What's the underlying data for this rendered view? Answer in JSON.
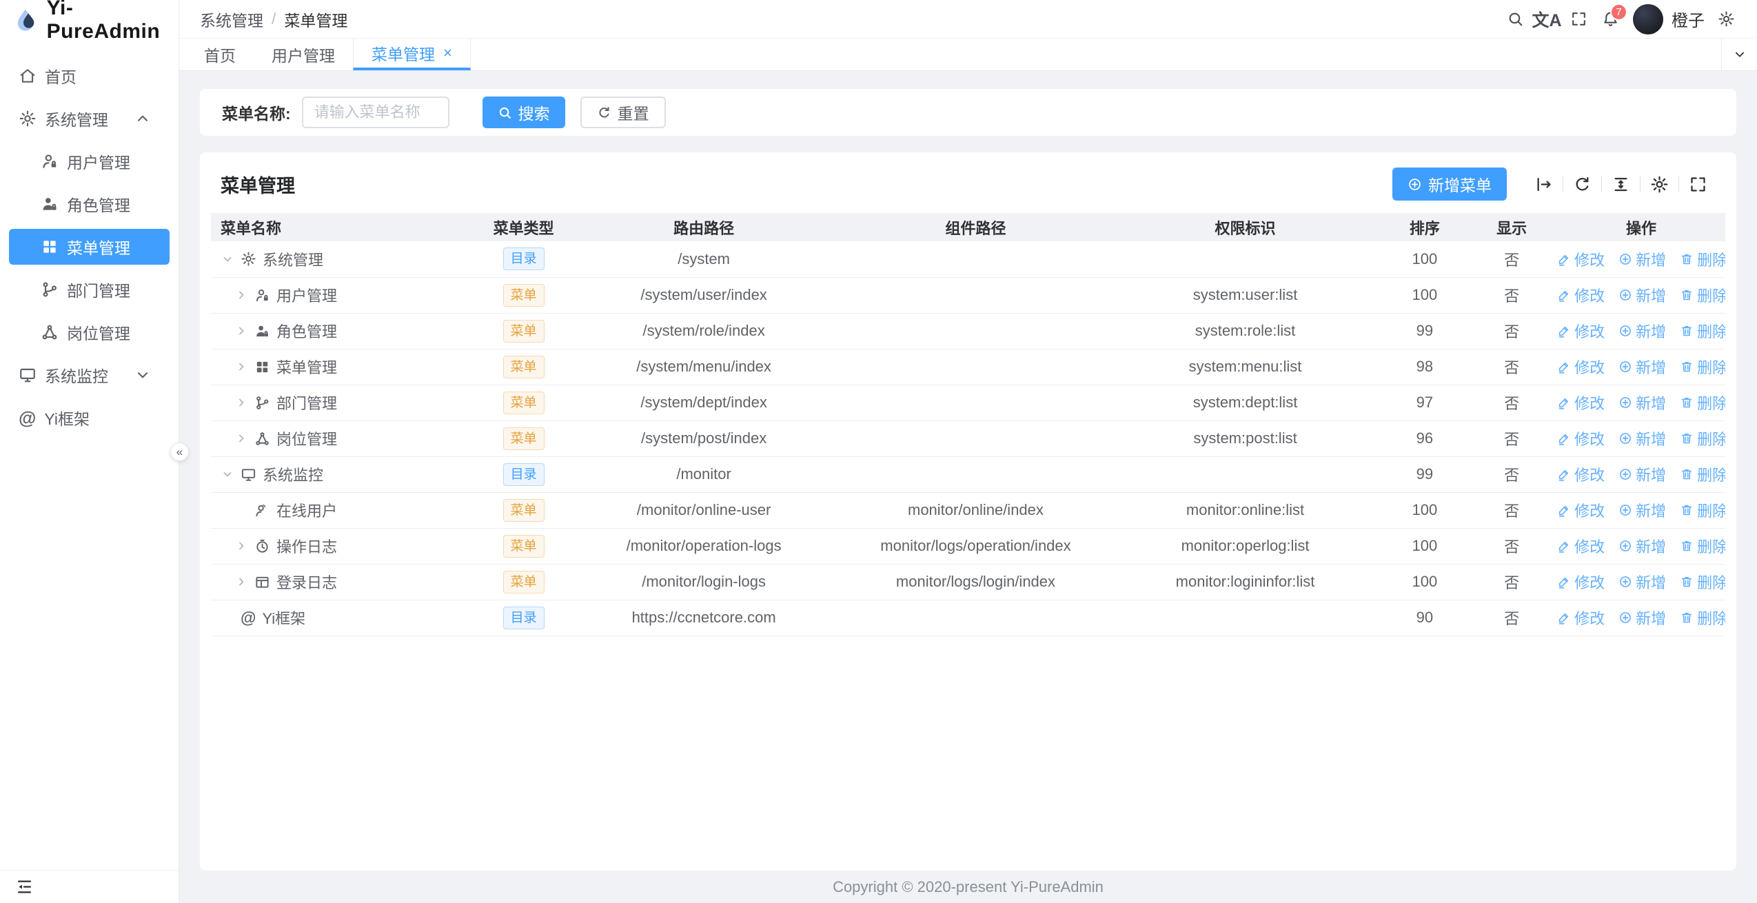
{
  "app": {
    "title": "Yi-PureAdmin",
    "copyright": "Copyright © 2020-present Yi-PureAdmin"
  },
  "header": {
    "breadcrumb": [
      "系统管理",
      "菜单管理"
    ],
    "separator": "/",
    "lang_icon_text": "文A",
    "badge_count": "7",
    "username": "橙子"
  },
  "tabs": [
    {
      "key": "home",
      "label": "首页"
    },
    {
      "key": "user-management",
      "label": "用户管理"
    },
    {
      "key": "menu-management",
      "label": "菜单管理",
      "active": true,
      "close": "×"
    }
  ],
  "sidebar": {
    "items": [
      {
        "key": "home",
        "label": "首页",
        "icon": "home-icon"
      },
      {
        "key": "system-management",
        "label": "系统管理",
        "icon": "gear-icon",
        "chevron": "up"
      },
      {
        "key": "user-management",
        "label": "用户管理",
        "icon": "user-icon",
        "child": true
      },
      {
        "key": "role-management",
        "label": "角色管理",
        "icon": "role-icon",
        "child": true
      },
      {
        "key": "menu-management",
        "label": "菜单管理",
        "icon": "menu-grid-icon",
        "child": true,
        "active": true
      },
      {
        "key": "dept-management",
        "label": "部门管理",
        "icon": "dept-icon",
        "child": true
      },
      {
        "key": "post-management",
        "label": "岗位管理",
        "icon": "post-icon",
        "child": true
      },
      {
        "key": "system-monitor",
        "label": "系统监控",
        "icon": "monitor-icon",
        "chevron": "down"
      },
      {
        "key": "yi-framework",
        "label": "Yi框架",
        "icon": "at-icon"
      }
    ],
    "collapse_glyph": "«"
  },
  "search": {
    "label": "菜单名称:",
    "placeholder": "请输入菜单名称",
    "search_label": "搜索",
    "reset_label": "重置"
  },
  "card": {
    "title": "菜单管理",
    "add_label": "新增菜单"
  },
  "table": {
    "columns": [
      {
        "key": "name",
        "label": "菜单名称"
      },
      {
        "key": "type",
        "label": "菜单类型"
      },
      {
        "key": "route",
        "label": "路由路径"
      },
      {
        "key": "component",
        "label": "组件路径"
      },
      {
        "key": "permission",
        "label": "权限标识"
      },
      {
        "key": "sort",
        "label": "排序"
      },
      {
        "key": "visible",
        "label": "显示"
      },
      {
        "key": "actions",
        "label": "操作"
      }
    ],
    "type_labels": {
      "dir": "目录",
      "menu": "菜单"
    },
    "actions": [
      {
        "key": "modify",
        "label": "修改",
        "icon": "pencil-icon"
      },
      {
        "key": "add",
        "label": "新增",
        "icon": "plus-circle-icon"
      },
      {
        "key": "delete",
        "label": "删除",
        "icon": "trash-icon"
      }
    ],
    "rows": [
      {
        "key": "system-management",
        "name": "系统管理",
        "icon": "gear-icon",
        "level": 1,
        "arrow": "down",
        "type": "dir",
        "route": "/system",
        "component": "",
        "permission": "",
        "sort": "100",
        "visible": "否"
      },
      {
        "key": "user-management",
        "name": "用户管理",
        "icon": "user-icon",
        "level": 2,
        "arrow": "right",
        "type": "menu",
        "route": "/system/user/index",
        "component": "",
        "permission": "system:user:list",
        "sort": "100",
        "visible": "否"
      },
      {
        "key": "role-management",
        "name": "角色管理",
        "icon": "role-icon",
        "level": 2,
        "arrow": "right",
        "type": "menu",
        "route": "/system/role/index",
        "component": "",
        "permission": "system:role:list",
        "sort": "99",
        "visible": "否"
      },
      {
        "key": "menu-management",
        "name": "菜单管理",
        "icon": "menu-grid-icon",
        "level": 2,
        "arrow": "right",
        "type": "menu",
        "route": "/system/menu/index",
        "component": "",
        "permission": "system:menu:list",
        "sort": "98",
        "visible": "否"
      },
      {
        "key": "dept-management",
        "name": "部门管理",
        "icon": "dept-icon",
        "level": 2,
        "arrow": "right",
        "type": "menu",
        "route": "/system/dept/index",
        "component": "",
        "permission": "system:dept:list",
        "sort": "97",
        "visible": "否"
      },
      {
        "key": "post-management",
        "name": "岗位管理",
        "icon": "post-icon",
        "level": 2,
        "arrow": "right",
        "type": "menu",
        "route": "/system/post/index",
        "component": "",
        "permission": "system:post:list",
        "sort": "96",
        "visible": "否"
      },
      {
        "key": "system-monitor",
        "name": "系统监控",
        "icon": "monitor-icon",
        "level": 1,
        "arrow": "down",
        "type": "dir",
        "route": "/monitor",
        "component": "",
        "permission": "",
        "sort": "99",
        "visible": "否"
      },
      {
        "key": "online-users",
        "name": "在线用户",
        "icon": "online-user-icon",
        "level": 2,
        "arrow": "none",
        "type": "menu",
        "route": "/monitor/online-user",
        "component": "monitor/online/index",
        "permission": "monitor:online:list",
        "sort": "100",
        "visible": "否"
      },
      {
        "key": "operation-logs",
        "name": "操作日志",
        "icon": "clock-icon",
        "level": 2,
        "arrow": "right",
        "type": "menu",
        "route": "/monitor/operation-logs",
        "component": "monitor/logs/operation/index",
        "permission": "monitor:operlog:list",
        "sort": "100",
        "visible": "否"
      },
      {
        "key": "login-logs",
        "name": "登录日志",
        "icon": "login-log-icon",
        "level": 2,
        "arrow": "right",
        "type": "menu",
        "route": "/monitor/login-logs",
        "component": "monitor/logs/login/index",
        "permission": "monitor:logininfor:list",
        "sort": "100",
        "visible": "否"
      },
      {
        "key": "yi-framework",
        "name": "Yi框架",
        "icon": "at-icon",
        "level": 1,
        "arrow": "none",
        "type": "dir",
        "route": "https://ccnetcore.com",
        "component": "",
        "permission": "",
        "sort": "90",
        "visible": "否"
      }
    ]
  },
  "colors": {
    "primary": "#409eff",
    "page_bg": "#f0f2f5",
    "badge": "#f56c6c",
    "action_link": "#66b1ff",
    "tag_dir_text": "#409eff",
    "tag_dir_bg": "#ecf5ff",
    "tag_dir_border": "#b3d8ff",
    "tag_menu_text": "#e6a23c",
    "tag_menu_bg": "#fdf6ec",
    "tag_menu_border": "#f5dab1"
  }
}
